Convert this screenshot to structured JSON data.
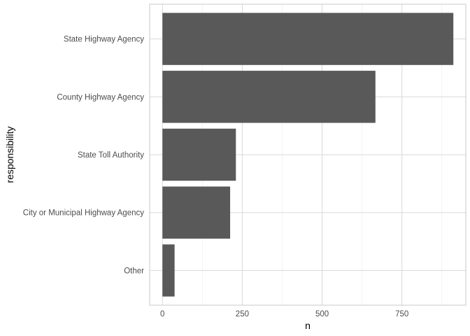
{
  "chart_data": {
    "type": "bar",
    "orientation": "horizontal",
    "categories": [
      "Other",
      "City or Municipal Highway Agency",
      "State Toll Authority",
      "County Highway Agency",
      "State Highway Agency"
    ],
    "values": [
      38,
      212,
      230,
      667,
      911
    ],
    "xlabel": "n",
    "ylabel": "responsibility",
    "x_ticks": [
      0,
      250,
      500,
      750
    ],
    "x_tick_labels": [
      "0",
      "250",
      "500",
      "750"
    ],
    "xlim": [
      -40,
      950
    ],
    "grid": true,
    "bar_color": "#595959",
    "grid_color": "#d9d9d9"
  }
}
